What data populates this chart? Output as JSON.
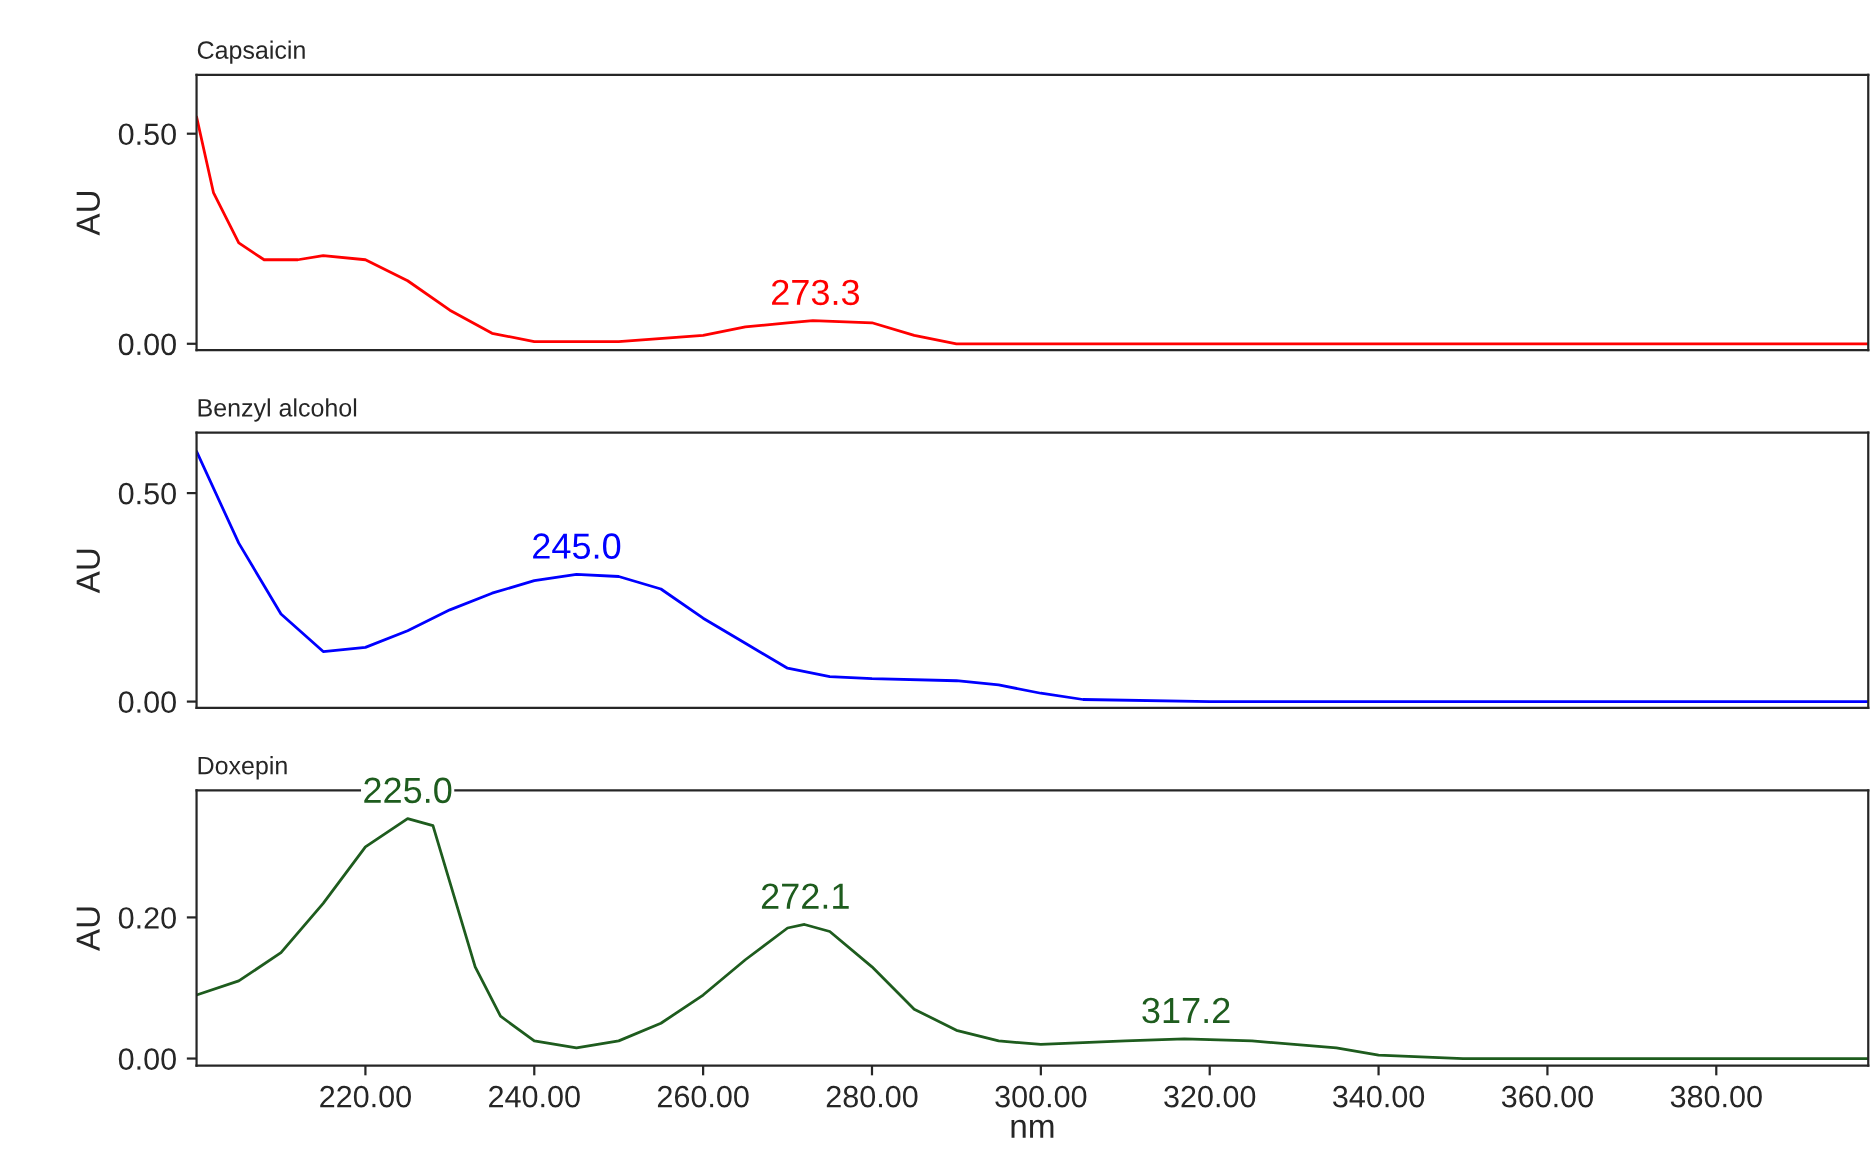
{
  "chart_data": [
    {
      "type": "line",
      "title": "Capsaicin",
      "ylabel": "AU",
      "tick_labels": "y",
      "xlim": [
        200,
        398
      ],
      "ylim": [
        -0.015,
        0.64
      ],
      "yticks": [
        {
          "value": 0,
          "label": "0.00"
        },
        {
          "value": 0.5,
          "label": "0.50"
        }
      ],
      "x": [
        200,
        202,
        205,
        208,
        212,
        215,
        220,
        225,
        230,
        235,
        240,
        250,
        260,
        265,
        270,
        273,
        280,
        285,
        290,
        300,
        320,
        340,
        360,
        380,
        398
      ],
      "series": [
        {
          "color": "#ff0000",
          "values": [
            0.54,
            0.36,
            0.24,
            0.2,
            0.2,
            0.21,
            0.2,
            0.15,
            0.08,
            0.025,
            0.005,
            0.005,
            0.02,
            0.04,
            0.05,
            0.055,
            0.05,
            0.02,
            0.0,
            0.0,
            0.0,
            0.0,
            0.0,
            0.0,
            0.0
          ]
        }
      ],
      "annotations": [
        {
          "text": "273.3",
          "x": 273.3,
          "y": 0.055
        }
      ]
    },
    {
      "type": "line",
      "title": "Benzyl alcohol",
      "ylabel": "AU",
      "tick_labels": "y",
      "xlim": [
        200,
        398
      ],
      "ylim": [
        -0.015,
        0.645
      ],
      "yticks": [
        {
          "value": 0,
          "label": "0.00"
        },
        {
          "value": 0.5,
          "label": "0.50"
        }
      ],
      "x": [
        200,
        205,
        210,
        215,
        220,
        225,
        230,
        235,
        240,
        245,
        250,
        255,
        260,
        265,
        270,
        275,
        280,
        290,
        295,
        300,
        305,
        320,
        340,
        360,
        380,
        398
      ],
      "series": [
        {
          "color": "#0000ff",
          "values": [
            0.6,
            0.38,
            0.21,
            0.12,
            0.13,
            0.17,
            0.22,
            0.26,
            0.29,
            0.305,
            0.3,
            0.27,
            0.2,
            0.14,
            0.08,
            0.06,
            0.055,
            0.05,
            0.04,
            0.02,
            0.005,
            0.0,
            0.0,
            0.0,
            0.0,
            0.0
          ]
        }
      ],
      "annotations": [
        {
          "text": "245.0",
          "x": 245.0,
          "y": 0.305
        }
      ]
    },
    {
      "type": "line",
      "title": "Doxepin",
      "ylabel": "AU",
      "xlabel": "nm",
      "xlim": [
        200,
        398
      ],
      "ylim": [
        -0.01,
        0.38
      ],
      "yticks": [
        {
          "value": 0,
          "label": "0.00"
        },
        {
          "value": 0.2,
          "label": "0.20"
        }
      ],
      "xticks": [
        {
          "value": 220,
          "label": "220.00"
        },
        {
          "value": 240,
          "label": "240.00"
        },
        {
          "value": 260,
          "label": "260.00"
        },
        {
          "value": 280,
          "label": "280.00"
        },
        {
          "value": 300,
          "label": "300.00"
        },
        {
          "value": 320,
          "label": "320.00"
        },
        {
          "value": 340,
          "label": "340.00"
        },
        {
          "value": 360,
          "label": "360.00"
        },
        {
          "value": 380,
          "label": "380.00"
        }
      ],
      "x": [
        200,
        205,
        210,
        215,
        220,
        225,
        228,
        230,
        233,
        236,
        240,
        245,
        250,
        255,
        260,
        265,
        270,
        272,
        275,
        280,
        285,
        290,
        295,
        300,
        310,
        317,
        325,
        335,
        340,
        350,
        380,
        398
      ],
      "series": [
        {
          "color": "#1e5c1e",
          "values": [
            0.09,
            0.11,
            0.15,
            0.22,
            0.3,
            0.34,
            0.33,
            0.25,
            0.13,
            0.06,
            0.025,
            0.015,
            0.025,
            0.05,
            0.09,
            0.14,
            0.185,
            0.19,
            0.18,
            0.13,
            0.07,
            0.04,
            0.025,
            0.02,
            0.025,
            0.028,
            0.025,
            0.015,
            0.005,
            0.0,
            0.0,
            0.0
          ]
        }
      ],
      "annotations": [
        {
          "text": "225.0",
          "x": 225.0,
          "y": 0.34
        },
        {
          "text": "272.1",
          "x": 272.1,
          "y": 0.19
        },
        {
          "text": "317.2",
          "x": 317.2,
          "y": 0.028
        }
      ]
    }
  ]
}
